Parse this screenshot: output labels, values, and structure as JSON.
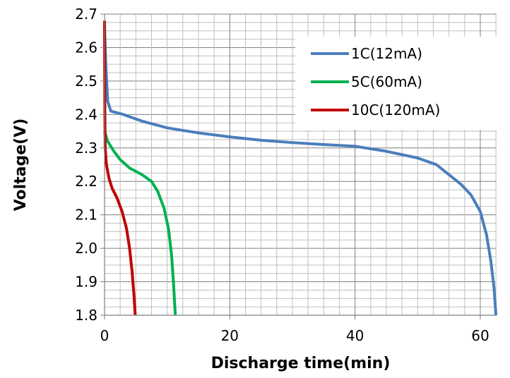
{
  "chart_data": {
    "type": "line",
    "title": "",
    "xlabel": "Discharge time(min)",
    "ylabel": "Voltage(V)",
    "xlim": [
      0,
      62.6
    ],
    "ylim": [
      1.8,
      2.7
    ],
    "x_ticks": [
      0,
      20,
      40,
      60
    ],
    "x_tick_labels": [
      "0",
      "20",
      "40",
      "60"
    ],
    "y_ticks": [
      1.8,
      1.9,
      2.0,
      2.1,
      2.2,
      2.3,
      2.4,
      2.5,
      2.6,
      2.7
    ],
    "y_tick_labels": [
      "1.8",
      "1.9",
      "2.0",
      "2.1",
      "2.2",
      "2.3",
      "2.4",
      "2.5",
      "2.6",
      "2.7"
    ],
    "grid": true,
    "legend_position": "top-right",
    "series": [
      {
        "name": "1C(12mA)",
        "color": "#4a7ebb",
        "points": [
          [
            0,
            2.66
          ],
          [
            0.2,
            2.55
          ],
          [
            0.5,
            2.44
          ],
          [
            1,
            2.41
          ],
          [
            3,
            2.4
          ],
          [
            6,
            2.38
          ],
          [
            10,
            2.36
          ],
          [
            15,
            2.345
          ],
          [
            20,
            2.333
          ],
          [
            25,
            2.323
          ],
          [
            30,
            2.316
          ],
          [
            35,
            2.31
          ],
          [
            40,
            2.305
          ],
          [
            45,
            2.29
          ],
          [
            50,
            2.27
          ],
          [
            53,
            2.25
          ],
          [
            55,
            2.22
          ],
          [
            57,
            2.19
          ],
          [
            58.5,
            2.16
          ],
          [
            60,
            2.11
          ],
          [
            61,
            2.04
          ],
          [
            61.7,
            1.96
          ],
          [
            62.2,
            1.88
          ],
          [
            62.5,
            1.8
          ]
        ]
      },
      {
        "name": "5C(60mA)",
        "color": "#00b050",
        "points": [
          [
            0,
            2.35
          ],
          [
            0.5,
            2.32
          ],
          [
            1.5,
            2.29
          ],
          [
            2.5,
            2.265
          ],
          [
            4,
            2.24
          ],
          [
            6,
            2.22
          ],
          [
            7.5,
            2.2
          ],
          [
            8.5,
            2.17
          ],
          [
            9.5,
            2.12
          ],
          [
            10.2,
            2.06
          ],
          [
            10.7,
            1.98
          ],
          [
            11.0,
            1.9
          ],
          [
            11.3,
            1.8
          ]
        ]
      },
      {
        "name": "10C(120mA)",
        "color": "#c00000",
        "points": [
          [
            0,
            2.68
          ],
          [
            0.05,
            2.4
          ],
          [
            0.1,
            2.3
          ],
          [
            0.3,
            2.25
          ],
          [
            0.7,
            2.21
          ],
          [
            1.2,
            2.18
          ],
          [
            2,
            2.15
          ],
          [
            2.8,
            2.11
          ],
          [
            3.5,
            2.06
          ],
          [
            4,
            2.0
          ],
          [
            4.4,
            1.93
          ],
          [
            4.7,
            1.86
          ],
          [
            4.9,
            1.8
          ]
        ]
      }
    ]
  }
}
